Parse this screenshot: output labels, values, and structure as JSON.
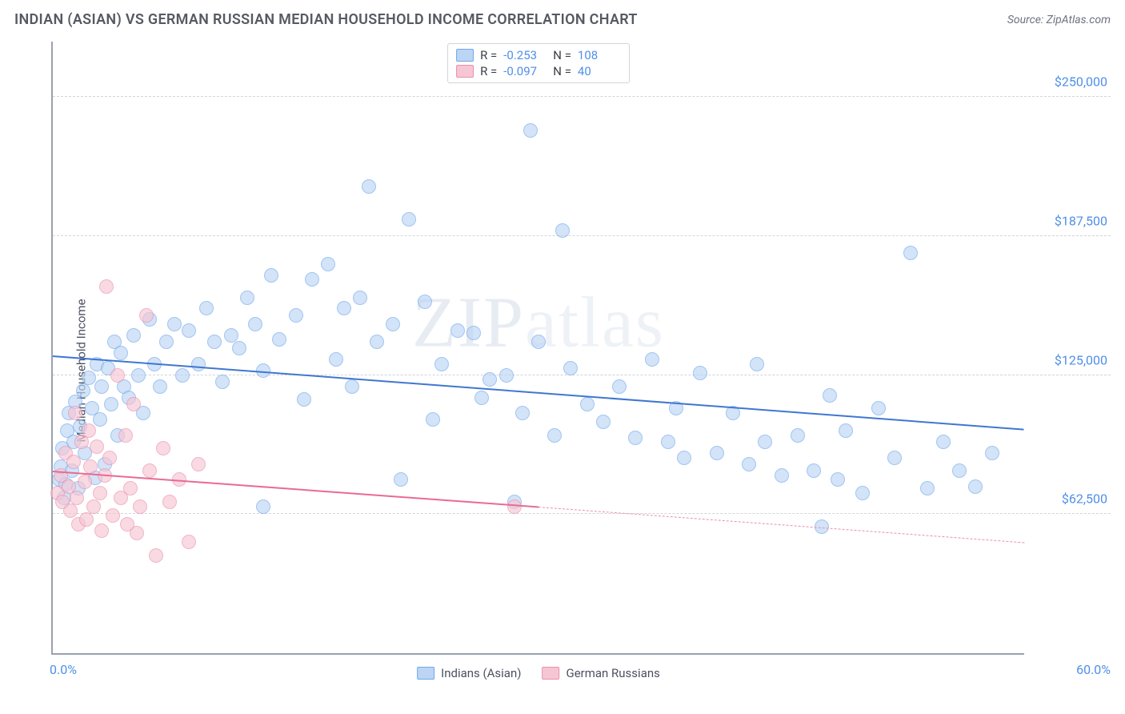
{
  "header": {
    "title": "INDIAN (ASIAN) VS GERMAN RUSSIAN MEDIAN HOUSEHOLD INCOME CORRELATION CHART",
    "source": "Source: ZipAtlas.com"
  },
  "watermark": {
    "prefix": "ZIP",
    "suffix": "atlas"
  },
  "chart": {
    "type": "scatter",
    "y_axis": {
      "title": "Median Household Income",
      "min": 0,
      "max": 275000,
      "ticks": [
        62500,
        125000,
        187500,
        250000
      ],
      "tick_labels": [
        "$62,500",
        "$125,000",
        "$187,500",
        "$250,000"
      ],
      "tick_color": "#4f8fe8",
      "grid_color": "#d0d4da"
    },
    "x_axis": {
      "min": 0,
      "max": 60,
      "tick_left": "0.0%",
      "tick_right": "60.0%",
      "tick_color": "#4f8fe8"
    },
    "marker_radius": 9,
    "marker_stroke_width": 1.2,
    "background_color": "#ffffff",
    "axis_color": "#9aa2ae",
    "stats_box": {
      "rows": [
        {
          "swatch_fill": "#bcd5f5",
          "swatch_stroke": "#6fa7ea",
          "r_label": "R =",
          "r": "-0.253",
          "n_label": "N =",
          "n": "108"
        },
        {
          "swatch_fill": "#f6c6d4",
          "swatch_stroke": "#eb8fab",
          "r_label": "R =",
          "r": "-0.097",
          "n_label": "N =",
          "n": "40"
        }
      ]
    },
    "legend": [
      {
        "label": "Indians (Asian)",
        "fill": "#bcd5f5",
        "stroke": "#6fa7ea"
      },
      {
        "label": "German Russians",
        "fill": "#f6c6d4",
        "stroke": "#eb8fab"
      }
    ],
    "series": [
      {
        "name": "Indians (Asian)",
        "fill": "#bcd5f5",
        "stroke": "#6fa7ea",
        "fill_opacity": 0.65,
        "trend": {
          "y_at_xmin": 134000,
          "y_at_xmax": 101000,
          "solid_to_x": 60,
          "color": "#3f77d1"
        },
        "points": [
          [
            0.4,
            78000
          ],
          [
            0.5,
            84000
          ],
          [
            0.6,
            92000
          ],
          [
            0.7,
            70000
          ],
          [
            0.8,
            76000
          ],
          [
            0.9,
            100000
          ],
          [
            1.0,
            108000
          ],
          [
            1.2,
            82000
          ],
          [
            1.3,
            95000
          ],
          [
            1.4,
            113000
          ],
          [
            1.6,
            74000
          ],
          [
            1.7,
            102000
          ],
          [
            1.9,
            118000
          ],
          [
            2.0,
            90000
          ],
          [
            2.2,
            124000
          ],
          [
            2.4,
            110000
          ],
          [
            2.6,
            79000
          ],
          [
            2.7,
            130000
          ],
          [
            2.9,
            105000
          ],
          [
            3.0,
            120000
          ],
          [
            3.2,
            85000
          ],
          [
            3.4,
            128000
          ],
          [
            3.6,
            112000
          ],
          [
            3.8,
            140000
          ],
          [
            4.0,
            98000
          ],
          [
            4.2,
            135000
          ],
          [
            4.4,
            120000
          ],
          [
            4.7,
            115000
          ],
          [
            5.0,
            143000
          ],
          [
            5.3,
            125000
          ],
          [
            5.6,
            108000
          ],
          [
            6.0,
            150000
          ],
          [
            6.3,
            130000
          ],
          [
            6.6,
            120000
          ],
          [
            7.0,
            140000
          ],
          [
            7.5,
            148000
          ],
          [
            8.0,
            125000
          ],
          [
            8.4,
            145000
          ],
          [
            9.0,
            130000
          ],
          [
            9.5,
            155000
          ],
          [
            10.0,
            140000
          ],
          [
            10.5,
            122000
          ],
          [
            11.0,
            143000
          ],
          [
            11.5,
            137000
          ],
          [
            12.0,
            160000
          ],
          [
            12.5,
            148000
          ],
          [
            13.0,
            127000
          ],
          [
            13.5,
            170000
          ],
          [
            14.0,
            141000
          ],
          [
            15.0,
            152000
          ],
          [
            15.5,
            114000
          ],
          [
            16.0,
            168000
          ],
          [
            17.0,
            175000
          ],
          [
            18.0,
            155000
          ],
          [
            17.5,
            132000
          ],
          [
            18.5,
            120000
          ],
          [
            19.0,
            160000
          ],
          [
            19.5,
            210000
          ],
          [
            20.0,
            140000
          ],
          [
            21.0,
            148000
          ],
          [
            22.0,
            195000
          ],
          [
            23.0,
            158000
          ],
          [
            24.0,
            130000
          ],
          [
            23.5,
            105000
          ],
          [
            25.0,
            145000
          ],
          [
            26.0,
            144000
          ],
          [
            26.5,
            115000
          ],
          [
            27.0,
            123000
          ],
          [
            28.0,
            125000
          ],
          [
            29.0,
            108000
          ],
          [
            29.5,
            235000
          ],
          [
            30.0,
            140000
          ],
          [
            31.0,
            98000
          ],
          [
            31.5,
            190000
          ],
          [
            32.0,
            128000
          ],
          [
            33.0,
            112000
          ],
          [
            34.0,
            104000
          ],
          [
            35.0,
            120000
          ],
          [
            36.0,
            97000
          ],
          [
            37.0,
            132000
          ],
          [
            38.0,
            95000
          ],
          [
            38.5,
            110000
          ],
          [
            39.0,
            88000
          ],
          [
            40.0,
            126000
          ],
          [
            41.0,
            90000
          ],
          [
            42.0,
            108000
          ],
          [
            43.0,
            85000
          ],
          [
            43.5,
            130000
          ],
          [
            44.0,
            95000
          ],
          [
            45.0,
            80000
          ],
          [
            46.0,
            98000
          ],
          [
            47.0,
            82000
          ],
          [
            47.5,
            57000
          ],
          [
            48.0,
            116000
          ],
          [
            48.5,
            78000
          ],
          [
            49.0,
            100000
          ],
          [
            50.0,
            72000
          ],
          [
            51.0,
            110000
          ],
          [
            52.0,
            88000
          ],
          [
            53.0,
            180000
          ],
          [
            54.0,
            74000
          ],
          [
            55.0,
            95000
          ],
          [
            56.0,
            82000
          ],
          [
            57.0,
            75000
          ],
          [
            58.0,
            90000
          ],
          [
            13.0,
            66000
          ],
          [
            21.5,
            78000
          ],
          [
            28.5,
            68000
          ]
        ]
      },
      {
        "name": "German Russians",
        "fill": "#f6c6d4",
        "stroke": "#eb8fab",
        "fill_opacity": 0.65,
        "trend": {
          "y_at_xmin": 82000,
          "y_at_xmax": 50000,
          "solid_to_x": 30,
          "color": "#e86b93"
        },
        "points": [
          [
            0.3,
            72000
          ],
          [
            0.5,
            80000
          ],
          [
            0.6,
            68000
          ],
          [
            0.8,
            90000
          ],
          [
            1.0,
            75000
          ],
          [
            1.1,
            64000
          ],
          [
            1.3,
            86000
          ],
          [
            1.5,
            70000
          ],
          [
            1.6,
            58000
          ],
          [
            1.8,
            95000
          ],
          [
            2.0,
            77000
          ],
          [
            2.1,
            60000
          ],
          [
            2.3,
            84000
          ],
          [
            2.5,
            66000
          ],
          [
            2.7,
            93000
          ],
          [
            2.9,
            72000
          ],
          [
            3.0,
            55000
          ],
          [
            3.2,
            80000
          ],
          [
            3.5,
            88000
          ],
          [
            3.7,
            62000
          ],
          [
            4.0,
            125000
          ],
          [
            4.2,
            70000
          ],
          [
            4.5,
            98000
          ],
          [
            4.8,
            74000
          ],
          [
            5.0,
            112000
          ],
          [
            5.4,
            66000
          ],
          [
            5.8,
            152000
          ],
          [
            6.0,
            82000
          ],
          [
            6.4,
            44000
          ],
          [
            6.8,
            92000
          ],
          [
            7.2,
            68000
          ],
          [
            7.8,
            78000
          ],
          [
            8.4,
            50000
          ],
          [
            9.0,
            85000
          ],
          [
            3.3,
            165000
          ],
          [
            1.4,
            108000
          ],
          [
            2.2,
            100000
          ],
          [
            28.5,
            66000
          ],
          [
            5.2,
            54000
          ],
          [
            4.6,
            58000
          ]
        ]
      }
    ]
  }
}
